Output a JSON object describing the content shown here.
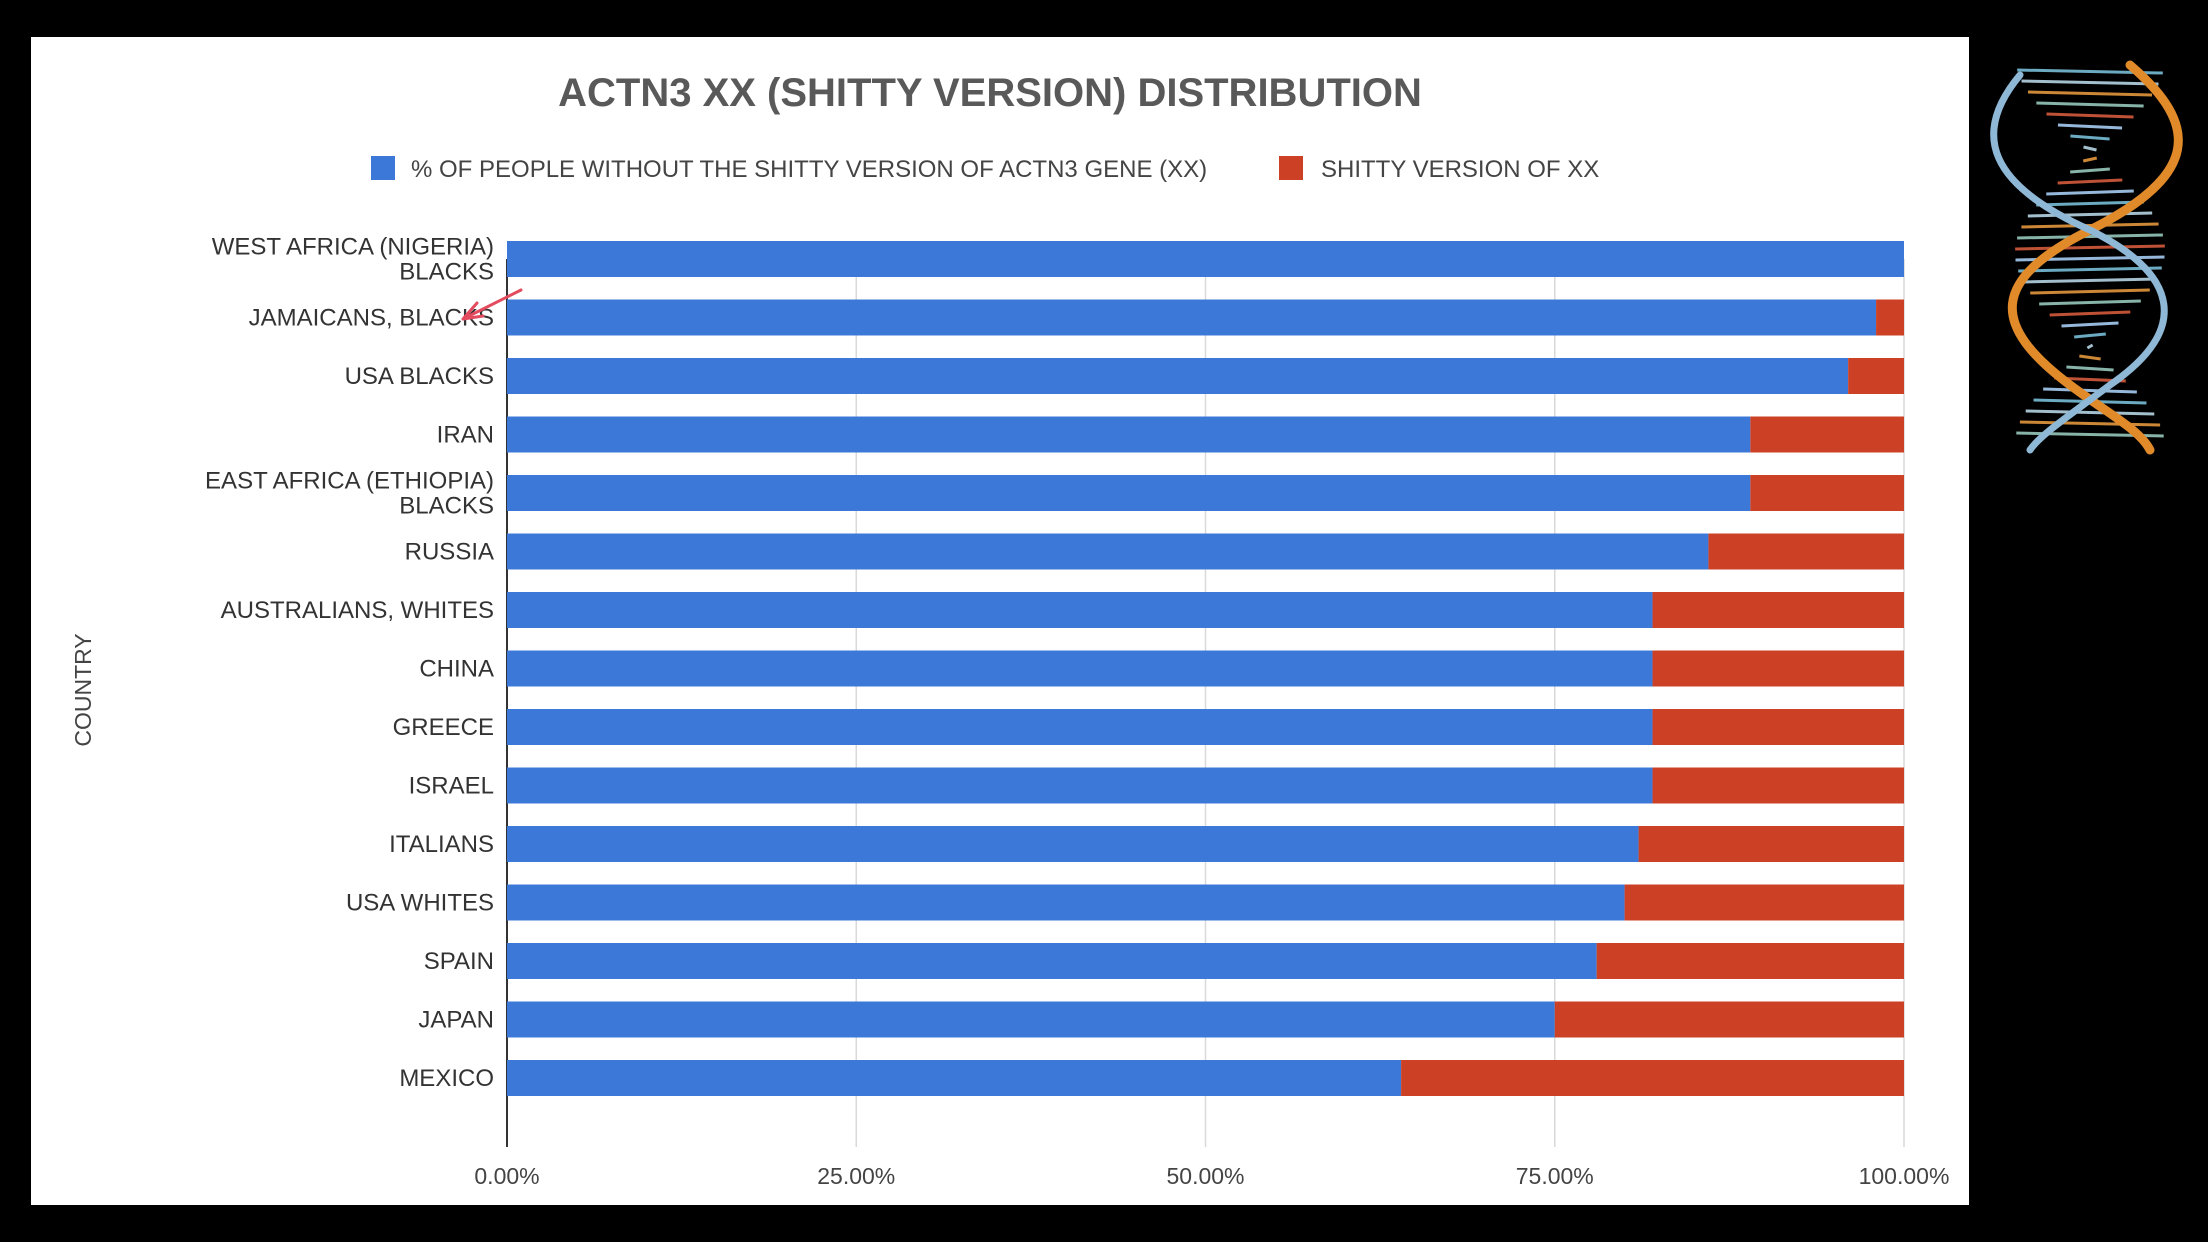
{
  "chart_data": {
    "type": "bar",
    "orientation": "horizontal",
    "stacked": true,
    "title": "ACTN3 XX (SHITTY VERSION) DISTRIBUTION",
    "ylabel": "COUNTRY",
    "xlabel": "",
    "xlim": [
      0,
      100
    ],
    "xticks": [
      "0.00%",
      "25.00%",
      "50.00%",
      "75.00%",
      "100.00%"
    ],
    "grid": true,
    "legend_position": "top",
    "categories": [
      [
        "WEST AFRICA (NIGERIA)",
        "BLACKS"
      ],
      [
        "JAMAICANS, BLACKS"
      ],
      [
        "USA BLACKS"
      ],
      [
        "IRAN"
      ],
      [
        "EAST AFRICA (ETHIOPIA)",
        "BLACKS"
      ],
      [
        "RUSSIA"
      ],
      [
        "AUSTRALIANS, WHITES"
      ],
      [
        "CHINA"
      ],
      [
        "GREECE"
      ],
      [
        "ISRAEL"
      ],
      [
        "ITALIANS"
      ],
      [
        "USA WHITES"
      ],
      [
        "SPAIN"
      ],
      [
        "JAPAN"
      ],
      [
        "MEXICO"
      ]
    ],
    "series": [
      {
        "name": "% OF PEOPLE WITHOUT THE SHITTY VERSION OF ACTN3 GENE (XX)",
        "color": "#3c78d8",
        "values": [
          100,
          98,
          96,
          89,
          89,
          86,
          82,
          82,
          82,
          82,
          81,
          80,
          78,
          75,
          64
        ]
      },
      {
        "name": "SHITTY VERSION OF XX",
        "color": "#cc4125",
        "values": [
          0,
          2,
          4,
          11,
          11,
          14,
          18,
          18,
          18,
          18,
          19,
          20,
          22,
          25,
          36
        ]
      }
    ]
  }
}
